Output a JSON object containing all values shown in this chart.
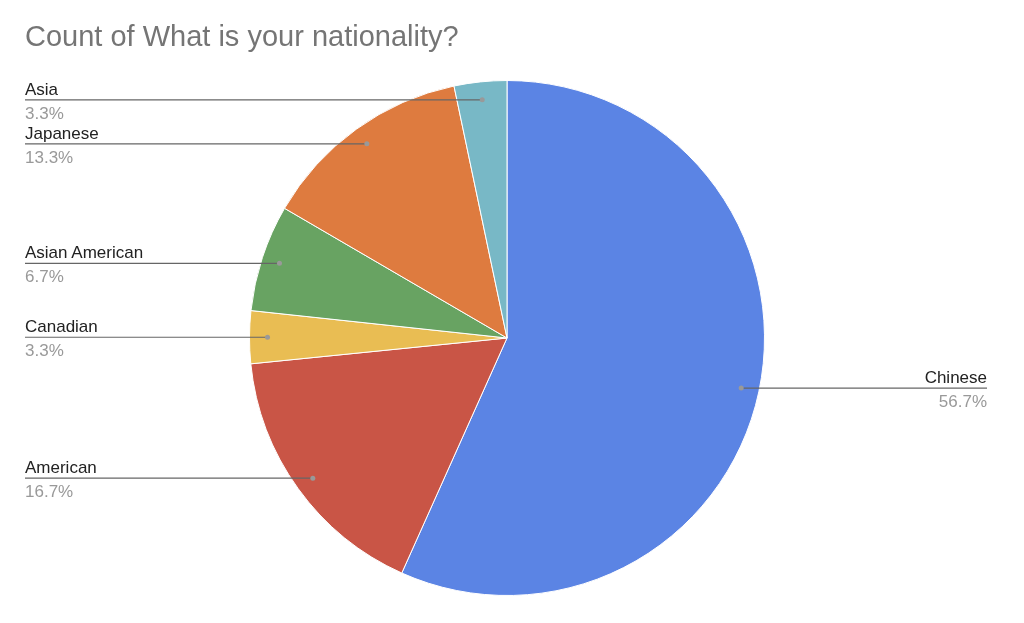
{
  "chart_data": {
    "type": "pie",
    "title": "Count of What is your nationality?",
    "categories": [
      "Chinese",
      "American",
      "Canadian",
      "Asian American",
      "Japanese",
      "Asia"
    ],
    "values": [
      56.7,
      16.7,
      3.3,
      6.7,
      13.3,
      3.3
    ],
    "colors": [
      "#5b84e4",
      "#c95546",
      "#e9bd53",
      "#68a362",
      "#de7b3f",
      "#78b8c6"
    ],
    "value_labels": [
      "56.7%",
      "16.7%",
      "3.3%",
      "6.7%",
      "13.3%",
      "3.3%"
    ],
    "legend": false
  }
}
